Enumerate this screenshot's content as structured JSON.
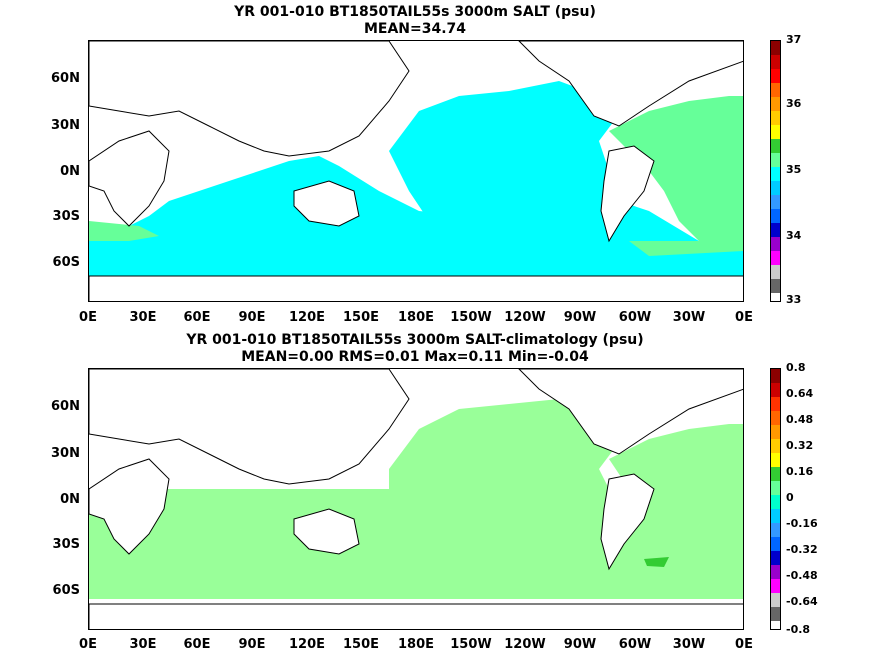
{
  "panels": [
    {
      "title_line1": "YR 001-010 BT1850TAIL55s 3000m SALT (psu)",
      "title_line2": "MEAN=34.74",
      "colorbar_labels": [
        "37",
        "36",
        "35",
        "34",
        "33"
      ],
      "colorbar_colors": [
        "#8b0000",
        "#cc0000",
        "#ff0000",
        "#ff6600",
        "#ff9900",
        "#ffcc00",
        "#ffff00",
        "#33cc33",
        "#66ff99",
        "#00ffff",
        "#00ccff",
        "#3399ff",
        "#0066ff",
        "#0000cc",
        "#9900cc",
        "#ff00ff",
        "#cccccc",
        "#666666"
      ],
      "colors": {
        "main": "#00ffff",
        "accent": "#66ff99"
      }
    },
    {
      "title_line1": "YR 001-010 BT1850TAIL55s 3000m SALT-climatology (psu)",
      "title_line2": "MEAN=0.00   RMS=0.01   Max=0.11   Min=-0.04",
      "colorbar_labels": [
        "0.8",
        "0.64",
        "0.48",
        "0.32",
        "0.16",
        "0",
        "-0.16",
        "-0.32",
        "-0.48",
        "-0.64",
        "-0.8"
      ],
      "colorbar_colors": [
        "#8b0000",
        "#cc0000",
        "#ff3300",
        "#ff6600",
        "#ff9900",
        "#ffcc00",
        "#ffff00",
        "#33cc33",
        "#66ff99",
        "#00ffcc",
        "#00ccff",
        "#3399ff",
        "#0066ff",
        "#0000cc",
        "#9900cc",
        "#ff00ff",
        "#cccccc",
        "#666666"
      ],
      "colors": {
        "main": "#99ff99",
        "accent": "#33cc33"
      }
    }
  ],
  "lat_labels": [
    "60N",
    "30N",
    "0N",
    "30S",
    "60S"
  ],
  "lon_labels": [
    "0E",
    "30E",
    "60E",
    "90E",
    "120E",
    "150E",
    "180E",
    "150W",
    "120W",
    "90W",
    "60W",
    "30W",
    "0E"
  ]
}
